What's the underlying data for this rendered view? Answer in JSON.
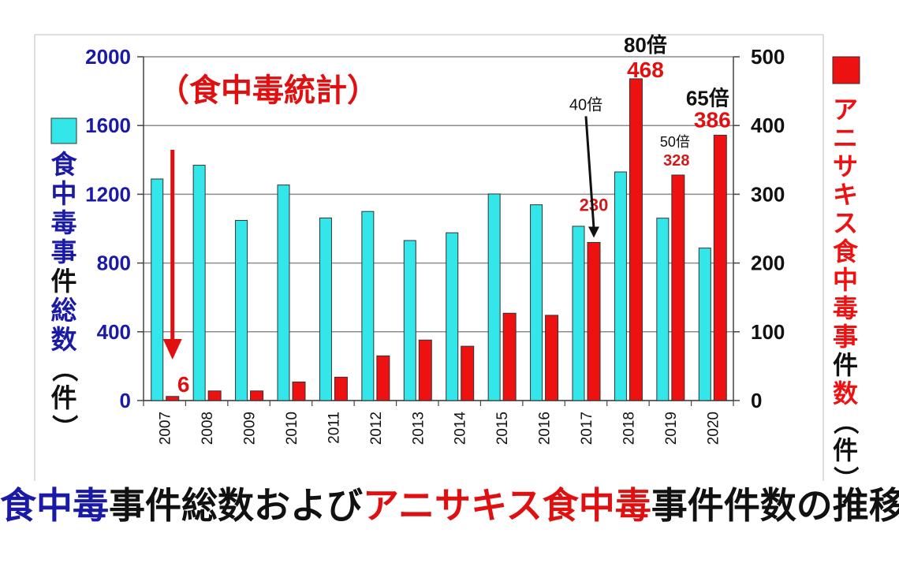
{
  "chart_data": {
    "type": "bar",
    "title": "（食中毒統計）",
    "categories": [
      "2007",
      "2008",
      "2009",
      "2010",
      "2011",
      "2012",
      "2013",
      "2014",
      "2015",
      "2016",
      "2017",
      "2018",
      "2019",
      "2020"
    ],
    "series": [
      {
        "name": "食中毒事件総数",
        "axis": "left",
        "color": "#33e6ea",
        "values": [
          1289,
          1369,
          1048,
          1254,
          1062,
          1100,
          931,
          976,
          1202,
          1139,
          1014,
          1330,
          1061,
          887
        ]
      },
      {
        "name": "アニサキス食中毒事件数",
        "axis": "right",
        "color": "#ee1111",
        "values": [
          6,
          14,
          14,
          27,
          34,
          65,
          88,
          79,
          127,
          124,
          230,
          468,
          328,
          386
        ]
      }
    ],
    "left_axis": {
      "label": "食中毒事件総数（件）",
      "ylim": [
        0,
        2000
      ],
      "ticks": [
        "0",
        "400",
        "800",
        "1200",
        "1600",
        "2000"
      ],
      "color": "#1a1aa6"
    },
    "right_axis": {
      "label": "アニサキス食中毒事件数（件）",
      "ylim": [
        0,
        500
      ],
      "ticks": [
        "0",
        "100",
        "200",
        "300",
        "400",
        "500"
      ],
      "color": "#111111"
    },
    "grid": true,
    "legend": "left and right of plot, beside each axis label",
    "annotations": [
      {
        "category": "2007",
        "text": "6",
        "kind": "value"
      },
      {
        "category": "2017",
        "text": "230",
        "kind": "value"
      },
      {
        "category": "2017",
        "text": "40倍",
        "kind": "ratio"
      },
      {
        "category": "2018",
        "text": "468",
        "kind": "value"
      },
      {
        "category": "2018",
        "text": "80倍",
        "kind": "ratio"
      },
      {
        "category": "2019",
        "text": "328",
        "kind": "value"
      },
      {
        "category": "2019",
        "text": "50倍",
        "kind": "ratio"
      },
      {
        "category": "2020",
        "text": "386",
        "kind": "value"
      },
      {
        "category": "2020",
        "text": "65倍",
        "kind": "ratio"
      }
    ]
  },
  "caption": {
    "part1": "食中毒",
    "part2": "事件総数および",
    "part3": "アニサキス食中毒",
    "part4": "事件件数の推移"
  }
}
